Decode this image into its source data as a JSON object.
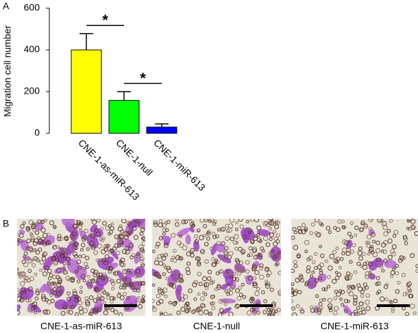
{
  "chart_data": {
    "type": "bar",
    "ylabel": "Migration cell number",
    "categories": [
      "CNE-1-as-miR-613",
      "CNE-1-null",
      "CNE-1-miR-613"
    ],
    "values": [
      400,
      158,
      30
    ],
    "errors": [
      78,
      42,
      15
    ],
    "colors": [
      "#ffff00",
      "#00ff00",
      "#0000ff"
    ],
    "ylim": [
      0,
      600
    ],
    "yticks": [
      0,
      200,
      400,
      600
    ],
    "annotations": [
      "*",
      "*"
    ]
  },
  "panel_labels": [
    "A",
    "B"
  ],
  "images": {
    "captions": [
      "CNE-1-as-miR-613",
      "CNE-1-null",
      "CNE-1-miR-613"
    ]
  }
}
